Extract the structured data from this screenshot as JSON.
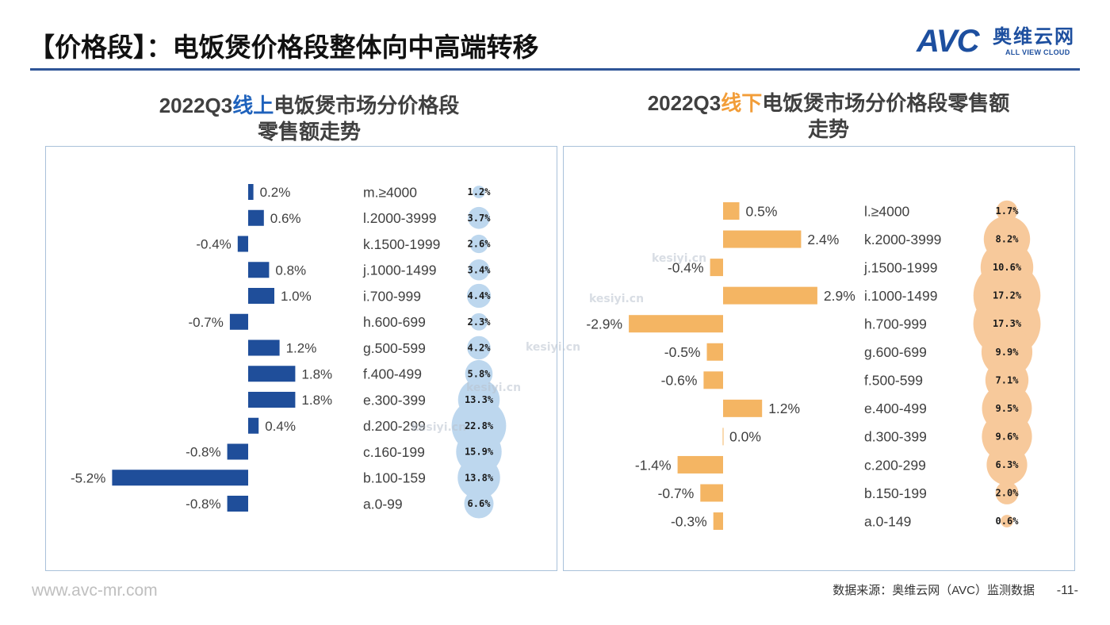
{
  "header": {
    "title": "【价格段】：电饭煲价格段整体向中高端转移",
    "logo": {
      "letters": "AVC",
      "name_cn": "奥维云网",
      "name_en": "ALL VIEW CLOUD"
    }
  },
  "colors": {
    "brand_blue": "#2F5597",
    "logo_blue": "#1D4F9F"
  },
  "watermark": "kesiyi.cn",
  "chart_data": [
    {
      "type": "bar",
      "title_parts": [
        "2022Q3",
        "线上",
        "电饭煲市场分价格段"
      ],
      "title_line2": "零售额走势",
      "title_highlight_color": "#1F62BC",
      "categories": [
        "m.≥4000",
        "l.2000-3999",
        "k.1500-1999",
        "j.1000-1499",
        "i.700-999",
        "h.600-699",
        "g.500-599",
        "f.400-499",
        "e.300-399",
        "d.200-299",
        "c.160-199",
        "b.100-159",
        "a.0-99"
      ],
      "values": [
        0.2,
        0.6,
        -0.4,
        0.8,
        1.0,
        -0.7,
        1.2,
        1.8,
        1.8,
        0.4,
        -0.8,
        -5.2,
        -0.8
      ],
      "bubble_values": [
        1.2,
        3.7,
        2.6,
        3.4,
        4.4,
        2.3,
        4.2,
        5.8,
        13.3,
        22.8,
        15.9,
        13.8,
        6.6
      ],
      "unit": "%",
      "xlim": [
        -7,
        3
      ],
      "bar_color": "#1F4E9A",
      "bubble_color": "#BDD7EE"
    },
    {
      "type": "bar",
      "title_parts": [
        "2022Q3",
        "线下",
        "电饭煲市场分价格段零售额"
      ],
      "title_line2": "走势",
      "title_highlight_color": "#F29D38",
      "categories": [
        "l.≥4000",
        "k.2000-3999",
        "j.1500-1999",
        "i.1000-1499",
        "h.700-999",
        "g.600-699",
        "f.500-599",
        "e.400-499",
        "d.300-399",
        "c.200-299",
        "b.150-199",
        "a.0-149"
      ],
      "values": [
        0.5,
        2.4,
        -0.4,
        2.9,
        -2.9,
        -0.5,
        -0.6,
        1.2,
        0.0,
        -1.4,
        -0.7,
        -0.3
      ],
      "bubble_values": [
        1.7,
        8.2,
        10.6,
        17.2,
        17.3,
        9.9,
        7.1,
        9.5,
        9.6,
        6.3,
        2.0,
        0.6
      ],
      "unit": "%",
      "xlim": [
        -4,
        4
      ],
      "bar_color": "#F4B563",
      "bubble_color": "#F7C99B"
    }
  ],
  "footer": {
    "website": "www.avc-mr.com",
    "source": "数据来源：奥维云网（AVC）监测数据",
    "page_number": "-11-"
  }
}
